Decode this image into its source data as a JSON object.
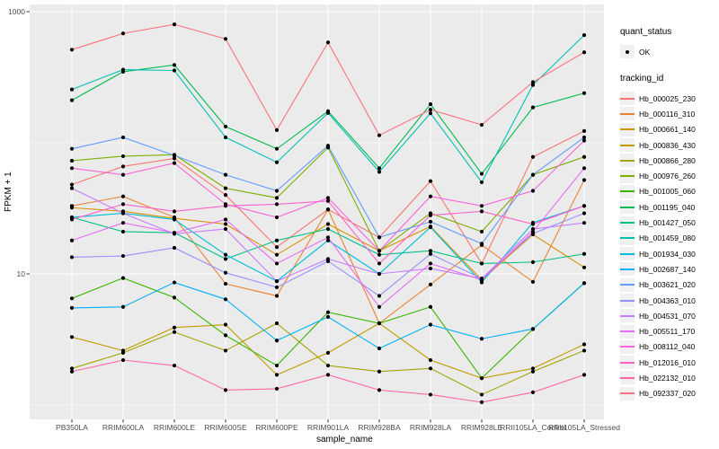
{
  "figure": {
    "background": "#ffffff",
    "panel_background": "#ebebeb",
    "grid_color": "#ffffff",
    "point_color": "#000000",
    "axis_text_color": "#4d4d4d"
  },
  "axes": {
    "x": {
      "label": "sample_name"
    },
    "y": {
      "label": "FPKM + 1",
      "tick_labels": [
        "1000",
        "10"
      ],
      "scale": "log10"
    }
  },
  "legend": {
    "quant_title": "quant_status",
    "quant_ok_label": "OK",
    "series_title": "tracking_id"
  },
  "chart_data": {
    "type": "line",
    "title": "",
    "xlabel": "sample_name",
    "ylabel": "FPKM + 1",
    "y_scale": "log10",
    "ylim": [
      1,
      1000
    ],
    "y_major_breaks": [
      10,
      1000
    ],
    "y_minor_breaks": [
      1,
      100
    ],
    "grid": true,
    "legend_position": "right",
    "point_marker": {
      "shape": "filled-circle",
      "color": "#000000",
      "label": "OK"
    },
    "categories": [
      "PB350LA",
      "RRIM600LA",
      "RRIM600LE",
      "RRIM600SE",
      "RRIM600PE",
      "RRIM901LA",
      "RRIM928BA",
      "RRIM928LA",
      "RRIM928LE",
      "RRII105LA_Control",
      "RRII105LA_Stressed"
    ],
    "series": [
      {
        "name": "Hb_000025_230",
        "color": "#F8766D",
        "values": [
          48,
          66,
          76,
          40,
          16,
          31,
          19,
          51,
          12,
          78,
          123
        ]
      },
      {
        "name": "Hb_000116_310",
        "color": "#EA8331",
        "values": [
          33,
          39,
          27,
          8.4,
          6.8,
          31,
          4.2,
          8.3,
          16.6,
          8.7,
          52
        ]
      },
      {
        "name": "Hb_000661_140",
        "color": "#D89000",
        "values": [
          32,
          30,
          26.5,
          24,
          14,
          24,
          15,
          23,
          9,
          20,
          11.2
        ]
      },
      {
        "name": "Hb_000836_430",
        "color": "#C09B00",
        "values": [
          3.3,
          2.6,
          3.9,
          4.1,
          1.7,
          2.5,
          4.2,
          2.2,
          1.6,
          1.9,
          2.9
        ]
      },
      {
        "name": "Hb_000866_280",
        "color": "#A3A500",
        "values": [
          1.9,
          2.5,
          3.6,
          2.6,
          4.2,
          2.0,
          1.8,
          1.9,
          1.2,
          1.8,
          2.6
        ]
      },
      {
        "name": "Hb_000976_260",
        "color": "#7CAE00",
        "values": [
          73,
          79,
          81,
          45,
          38,
          92,
          15,
          29,
          21,
          57,
          78
        ]
      },
      {
        "name": "Hb_001005_060",
        "color": "#39B600",
        "values": [
          6.5,
          9.3,
          6.6,
          3.4,
          2.0,
          5.1,
          4.2,
          5.6,
          1.6,
          3.8,
          8.5
        ]
      },
      {
        "name": "Hb_001195_040",
        "color": "#00BB4E",
        "values": [
          211,
          348,
          392,
          133,
          90,
          174,
          64,
          197,
          58,
          186,
          239
        ]
      },
      {
        "name": "Hb_001427_050",
        "color": "#00C087",
        "values": [
          27,
          21,
          20.6,
          13,
          18,
          22,
          14,
          15,
          12,
          12.3,
          14.2
        ]
      },
      {
        "name": "Hb_001459_080",
        "color": "#00C0B2",
        "values": [
          255,
          361,
          356,
          110,
          71,
          169,
          60,
          168,
          50,
          276,
          662
        ]
      },
      {
        "name": "Hb_001934_030",
        "color": "#00BCD8",
        "values": [
          27,
          29,
          26,
          14,
          8.8,
          18,
          10,
          22.7,
          8.6,
          24.6,
          33
        ]
      },
      {
        "name": "Hb_002687_140",
        "color": "#00B0F6",
        "values": [
          5.5,
          5.6,
          8.6,
          6.4,
          3.1,
          4.7,
          2.7,
          4.1,
          3.2,
          3.8,
          8.5
        ]
      },
      {
        "name": "Hb_003621_020",
        "color": "#619CFF",
        "values": [
          90,
          110,
          80,
          57,
          43,
          95,
          19,
          25,
          17,
          57,
          110
        ]
      },
      {
        "name": "Hb_004363_010",
        "color": "#9590FF",
        "values": [
          13.4,
          13.7,
          15.8,
          10.2,
          7.9,
          12.5,
          6.8,
          14.2,
          9.2,
          20.3,
          29
        ]
      },
      {
        "name": "Hb_004531_070",
        "color": "#C77CFF",
        "values": [
          45,
          29,
          20.2,
          22,
          8.8,
          13,
          10,
          11,
          9.2,
          22,
          24.5
        ]
      },
      {
        "name": "Hb_005511_170",
        "color": "#E76BF3",
        "values": [
          18,
          24.5,
          20.6,
          26,
          12,
          19,
          5.6,
          12,
          9,
          21,
          64
        ]
      },
      {
        "name": "Hb_008112_040",
        "color": "#FA62DB",
        "values": [
          64,
          57,
          70,
          34,
          27,
          38,
          15,
          39,
          33,
          43,
          104
        ]
      },
      {
        "name": "Hb_012016_010",
        "color": "#FF61CC",
        "values": [
          26,
          34,
          30,
          33,
          34,
          36,
          12,
          28,
          30,
          24,
          33
        ]
      },
      {
        "name": "Hb_022132_010",
        "color": "#FF67A4",
        "values": [
          1.8,
          2.2,
          2.0,
          1.3,
          1.33,
          1.7,
          1.3,
          1.2,
          1.05,
          1.25,
          1.7
        ]
      },
      {
        "name": "Hb_092337_020",
        "color": "#FC717F",
        "values": [
          513,
          682,
          800,
          620,
          125,
          583,
          114,
          179,
          137,
          290,
          490
        ]
      }
    ]
  }
}
